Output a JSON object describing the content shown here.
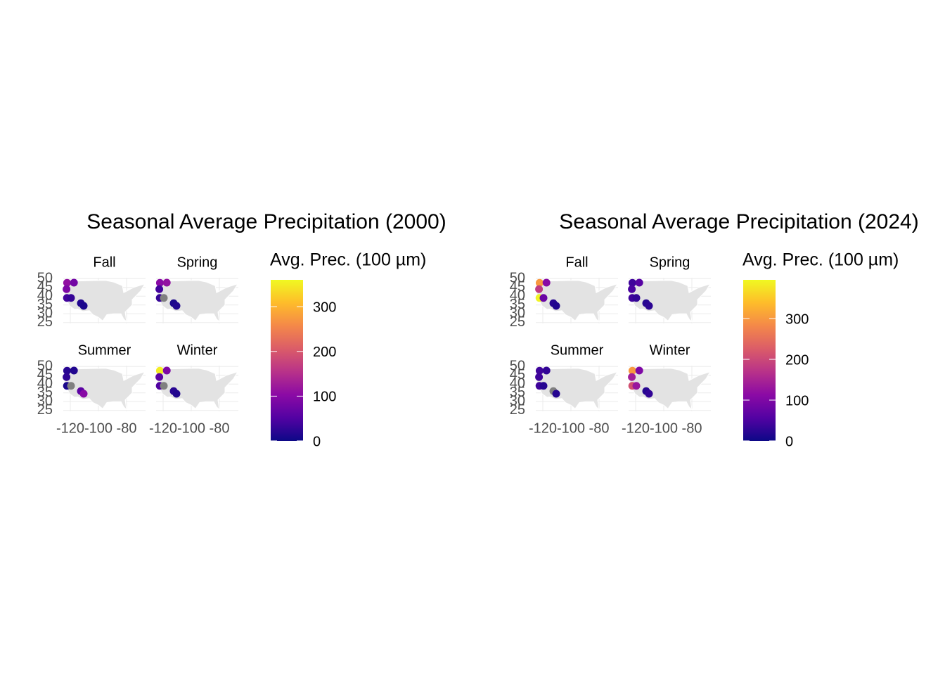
{
  "chart_data": [
    {
      "type": "scatter",
      "title": "Seasonal Average Precipitation (2000)",
      "legend_title": "Avg. Prec. (100 µm)",
      "color_lim": [
        0,
        360
      ],
      "color_ticks": [
        0,
        100,
        200,
        300
      ],
      "colorscale": [
        "#0d0887",
        "#5302a3",
        "#8b0aa5",
        "#b83289",
        "#db5c68",
        "#f48849",
        "#febc2a",
        "#f0f921"
      ],
      "na_color": "#808080",
      "xlim": [
        -125,
        -66.5
      ],
      "ylim": [
        24.5,
        50.5
      ],
      "xticks": [
        -120,
        -100,
        -80
      ],
      "yticks": [
        25,
        30,
        35,
        40,
        45,
        50
      ],
      "x": [
        -122.3,
        -117.4,
        -122.7,
        -122.4,
        -119.5,
        -112.5,
        -110.5
      ],
      "y": [
        47.6,
        47.7,
        44.0,
        39.0,
        39.0,
        36.0,
        34.5
      ],
      "facets": [
        {
          "name": "Fall",
          "values": [
            110,
            80,
            90,
            40,
            30,
            15,
            10
          ]
        },
        {
          "name": "Spring",
          "values": [
            100,
            110,
            40,
            30,
            null,
            10,
            15
          ]
        },
        {
          "name": "Summer",
          "values": [
            20,
            15,
            25,
            10,
            null,
            60,
            100
          ]
        },
        {
          "name": "Winter",
          "values": [
            350,
            90,
            60,
            50,
            null,
            20,
            15
          ]
        }
      ]
    },
    {
      "type": "scatter",
      "title": "Seasonal Average Precipitation (2024)",
      "legend_title": "Avg. Prec. (100 µm)",
      "color_lim": [
        0,
        395
      ],
      "color_ticks": [
        0,
        100,
        200,
        300
      ],
      "colorscale": [
        "#0d0887",
        "#5302a3",
        "#8b0aa5",
        "#b83289",
        "#db5c68",
        "#f48849",
        "#febc2a",
        "#f0f921"
      ],
      "na_color": "#808080",
      "xlim": [
        -125,
        -66.5
      ],
      "ylim": [
        24.5,
        50.5
      ],
      "xticks": [
        -120,
        -100,
        -80
      ],
      "yticks": [
        25,
        30,
        35,
        40,
        45,
        50
      ],
      "x": [
        -122.3,
        -117.4,
        -122.7,
        -122.4,
        -119.5,
        -112.5,
        -110.5
      ],
      "y": [
        47.6,
        47.7,
        44.0,
        39.0,
        39.0,
        36.0,
        34.5
      ],
      "facets": [
        {
          "name": "Fall",
          "values": [
            300,
            110,
            180,
            390,
            80,
            20,
            15
          ]
        },
        {
          "name": "Spring",
          "values": [
            40,
            60,
            50,
            40,
            30,
            20,
            25
          ]
        },
        {
          "name": "Summer",
          "values": [
            40,
            30,
            40,
            40,
            20,
            null,
            20
          ]
        },
        {
          "name": "Winter",
          "values": [
            300,
            100,
            140,
            210,
            130,
            20,
            30
          ]
        }
      ]
    }
  ]
}
